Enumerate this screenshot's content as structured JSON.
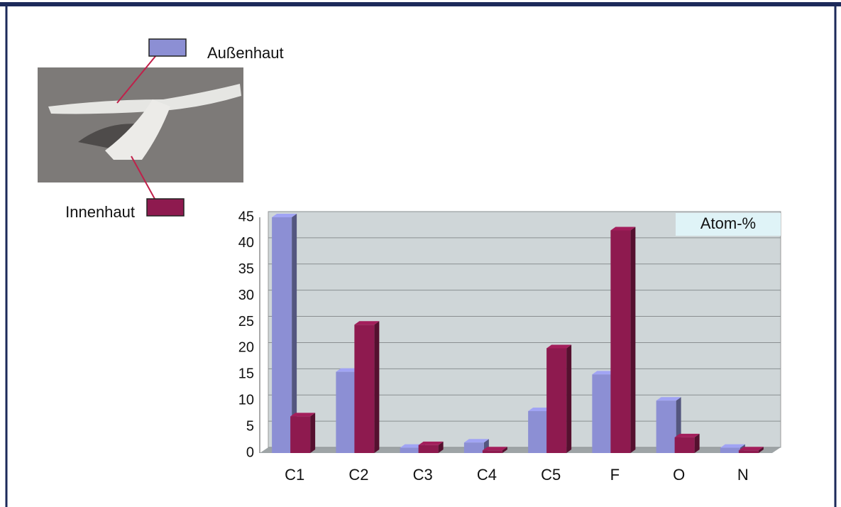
{
  "chart_data": {
    "type": "bar",
    "annotation": "Atom-%",
    "categories": [
      "C1",
      "C2",
      "C3",
      "C4",
      "C5",
      "F",
      "O",
      "N"
    ],
    "series": [
      {
        "name": "Außenhaut",
        "color": "#8c8fd4",
        "values": [
          45,
          15.5,
          1,
          2,
          8,
          15,
          10,
          1
        ]
      },
      {
        "name": "Innenhaut",
        "color": "#8e1a4f",
        "values": [
          7,
          24.5,
          1.5,
          0.5,
          20,
          42.5,
          3,
          0.5
        ]
      }
    ],
    "ylim": [
      0,
      45
    ],
    "yticks": [
      0,
      5,
      10,
      15,
      20,
      25,
      30,
      35,
      40,
      45
    ],
    "grid": true
  }
}
